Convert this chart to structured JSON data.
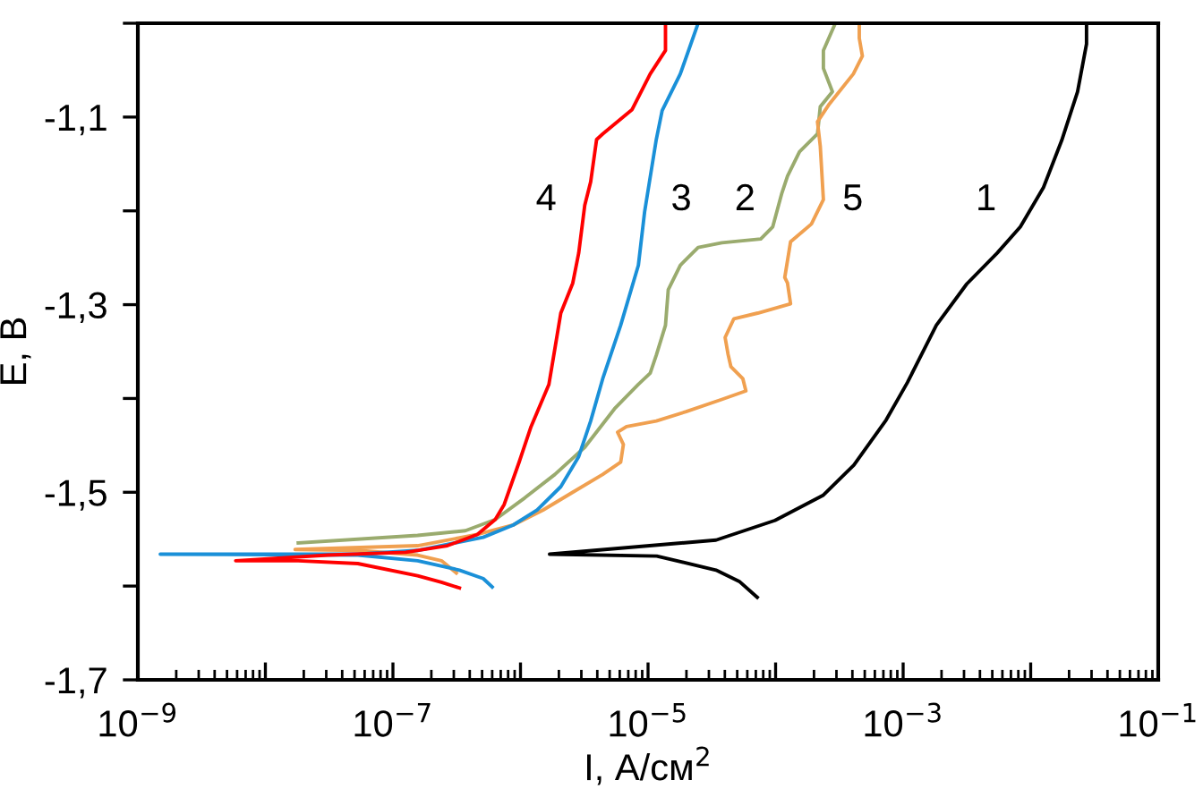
{
  "chart_data": {
    "type": "line",
    "xlabel": "I, А/см$^{2}$",
    "ylabel": "Е, В",
    "log": "x",
    "grid": false,
    "legend": false,
    "marker": "none",
    "line_style": "solid",
    "xlim": [
      1e-09,
      0.1
    ],
    "ylim": [
      -1.7,
      -1.0
    ],
    "xticks": [
      {
        "value": 1e-09,
        "label": "10$^{−9}$"
      },
      {
        "value": 1e-08,
        "label": null
      },
      {
        "value": 1e-07,
        "label": "10$^{−7}$"
      },
      {
        "value": 1e-06,
        "label": null
      },
      {
        "value": 1e-05,
        "label": "10$^{−5}$"
      },
      {
        "value": 0.0001,
        "label": null
      },
      {
        "value": 0.001,
        "label": "10$^{−3}$"
      },
      {
        "value": 0.01,
        "label": null
      },
      {
        "value": 0.1,
        "label": "10$^{−1}$"
      }
    ],
    "yticks": [
      {
        "value": -1.7,
        "label": "-1,7"
      },
      {
        "value": -1.6,
        "label": null
      },
      {
        "value": -1.5,
        "label": "-1,5"
      },
      {
        "value": -1.4,
        "label": null
      },
      {
        "value": -1.3,
        "label": "-1,3"
      },
      {
        "value": -1.2,
        "label": null
      },
      {
        "value": -1.1,
        "label": "-1,1"
      },
      {
        "value": -1.0,
        "label": null
      }
    ],
    "series": [
      {
        "name": "1",
        "color": "#000000",
        "x": [
          7.18e-05,
          5.19e-05,
          3.41e-05,
          1.17e-05,
          1.69e-06,
          3.41e-05,
          9.9e-05,
          0.000237,
          0.000411,
          0.000735,
          0.00108,
          0.00182,
          0.00315,
          0.00546,
          0.0083,
          0.0126,
          0.0175,
          0.0233,
          0.0274,
          0.0274
        ],
        "values": [
          -1.612,
          -1.595,
          -1.583,
          -1.568,
          -1.566,
          -1.551,
          -1.53,
          -1.503,
          -1.471,
          -1.423,
          -1.383,
          -1.322,
          -1.278,
          -1.245,
          -1.217,
          -1.175,
          -1.125,
          -1.073,
          -1.022,
          -1.0
        ]
      },
      {
        "name": "2",
        "color": "#9aab6e",
        "x": [
          1.81e-08,
          1.56e-07,
          3.7e-07,
          6.34e-07,
          1.08e-06,
          1.86e-06,
          3.19e-06,
          5.46e-06,
          8.4e-06,
          1.04e-05,
          1.16e-05,
          1.37e-05,
          1.44e-05,
          1.79e-05,
          2.47e-05,
          3.79e-05,
          7.65e-05,
          9.5e-05,
          0.000112,
          0.000124,
          0.000154,
          0.000213,
          0.000224,
          0.000279,
          0.000237,
          0.000237,
          0.000294
        ],
        "values": [
          -1.554,
          -1.546,
          -1.541,
          -1.529,
          -1.506,
          -1.481,
          -1.452,
          -1.411,
          -1.385,
          -1.373,
          -1.354,
          -1.322,
          -1.284,
          -1.258,
          -1.239,
          -1.234,
          -1.23,
          -1.217,
          -1.181,
          -1.163,
          -1.137,
          -1.118,
          -1.089,
          -1.073,
          -1.048,
          -1.029,
          -1.0
        ]
      },
      {
        "name": "5",
        "color": "#f0a050",
        "x": [
          3.14e-07,
          2.4e-07,
          1.56e-07,
          5.3e-08,
          1.71e-08,
          1.56e-07,
          4.59e-07,
          8.75e-07,
          1.5e-06,
          2.57e-06,
          4.41e-06,
          6.1e-06,
          6.41e-06,
          5.77e-06,
          6.78e-06,
          1.16e-05,
          1.99e-05,
          3.79e-05,
          5.85e-05,
          5.54e-05,
          4.46e-05,
          4.24e-05,
          4.02e-05,
          4.71e-05,
          7.24e-05,
          0.000131,
          0.000124,
          0.000118,
          0.000131,
          0.000191,
          0.000237,
          0.000224,
          0.000213,
          0.000264,
          0.000407,
          0.000479,
          0.000453,
          0.000453
        ],
        "values": [
          -1.586,
          -1.573,
          -1.567,
          -1.562,
          -1.561,
          -1.557,
          -1.545,
          -1.535,
          -1.519,
          -1.5,
          -1.481,
          -1.468,
          -1.449,
          -1.436,
          -1.43,
          -1.424,
          -1.414,
          -1.401,
          -1.392,
          -1.379,
          -1.366,
          -1.353,
          -1.335,
          -1.315,
          -1.309,
          -1.299,
          -1.277,
          -1.271,
          -1.233,
          -1.214,
          -1.188,
          -1.131,
          -1.105,
          -1.086,
          -1.054,
          -1.035,
          -1.016,
          -1.0
        ]
      },
      {
        "name": "3",
        "color": "#1a90d8",
        "x": [
          6e-07,
          5.1e-07,
          3.32e-07,
          1.56e-07,
          5.3e-08,
          1.5e-09,
          5.3e-08,
          1.56e-07,
          5.1e-07,
          8.75e-07,
          1.35e-06,
          2.07e-06,
          2.86e-06,
          3.55e-06,
          4.41e-06,
          6.1e-06,
          8.4e-06,
          9.4e-06,
          1.16e-05,
          1.29e-05,
          1.79e-05,
          2.47e-05
        ],
        "values": [
          -1.601,
          -1.592,
          -1.583,
          -1.573,
          -1.567,
          -1.566,
          -1.566,
          -1.562,
          -1.548,
          -1.535,
          -1.519,
          -1.494,
          -1.462,
          -1.424,
          -1.379,
          -1.322,
          -1.258,
          -1.201,
          -1.124,
          -1.093,
          -1.054,
          -1.0
        ]
      },
      {
        "name": "4",
        "color": "#ff0000",
        "x": [
          3.32e-07,
          2.4e-07,
          1.56e-07,
          5.3e-08,
          1.81e-08,
          5.85e-09,
          3.1e-08,
          1.26e-07,
          2.67e-07,
          4.59e-07,
          6.34e-07,
          7.45e-07,
          9.75e-07,
          1.21e-06,
          1.67e-06,
          1.86e-06,
          2.07e-06,
          2.57e-06,
          2.86e-06,
          3.19e-06,
          3.55e-06,
          3.95e-06,
          4.41e-06,
          7.5e-06,
          1.04e-05,
          1.37e-05,
          1.37e-05
        ],
        "values": [
          -1.602,
          -1.596,
          -1.589,
          -1.576,
          -1.573,
          -1.573,
          -1.567,
          -1.564,
          -1.557,
          -1.545,
          -1.529,
          -1.513,
          -1.468,
          -1.43,
          -1.385,
          -1.347,
          -1.309,
          -1.277,
          -1.245,
          -1.194,
          -1.169,
          -1.124,
          -1.118,
          -1.092,
          -1.054,
          -1.029,
          -1.0
        ]
      }
    ]
  }
}
